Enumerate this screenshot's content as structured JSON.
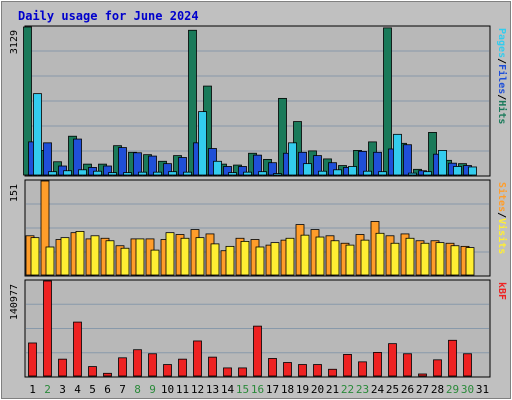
{
  "chart_data": [
    {
      "panel": "top",
      "type": "bar",
      "title": "Daily usage for June 2024",
      "y_max_label": "3129",
      "ylim": [
        0,
        3129
      ],
      "right_label_parts": [
        "Pages",
        "/",
        "Files",
        "/",
        "Hits"
      ],
      "categories": [
        "1",
        "2",
        "3",
        "4",
        "5",
        "6",
        "7",
        "8",
        "9",
        "10",
        "11",
        "12",
        "13",
        "14",
        "15",
        "16",
        "17",
        "18",
        "19",
        "20",
        "21",
        "22",
        "23",
        "24",
        "25",
        "26",
        "27",
        "28",
        "29",
        "30",
        "31"
      ],
      "series": [
        {
          "name": "Hits",
          "color": "#1a7a5a",
          "values": [
            3129,
            520,
            280,
            820,
            230,
            230,
            620,
            480,
            430,
            290,
            410,
            3060,
            1880,
            230,
            210,
            460,
            330,
            1620,
            1130,
            510,
            340,
            200,
            520,
            700,
            3110,
            670,
            120,
            900,
            310,
            240,
            0
          ]
        },
        {
          "name": "Files",
          "color": "#1f4fd8",
          "values": [
            700,
            680,
            190,
            760,
            160,
            190,
            580,
            470,
            400,
            240,
            370,
            680,
            560,
            180,
            180,
            420,
            260,
            460,
            480,
            410,
            260,
            160,
            500,
            480,
            550,
            640,
            90,
            440,
            250,
            200,
            0
          ]
        },
        {
          "name": "Pages",
          "color": "#33ccee",
          "values": [
            1720,
            70,
            90,
            110,
            80,
            50,
            50,
            60,
            60,
            70,
            60,
            1340,
            290,
            50,
            60,
            70,
            30,
            680,
            240,
            80,
            110,
            180,
            80,
            70,
            860,
            40,
            70,
            520,
            180,
            170,
            0
          ]
        }
      ]
    },
    {
      "panel": "middle",
      "type": "bar",
      "y_max_label": "151",
      "ylim": [
        0,
        151
      ],
      "right_label_parts": [
        "Sites",
        "/",
        "Visits"
      ],
      "categories": [
        "1",
        "2",
        "3",
        "4",
        "5",
        "6",
        "7",
        "8",
        "9",
        "10",
        "11",
        "12",
        "13",
        "14",
        "15",
        "16",
        "17",
        "18",
        "19",
        "20",
        "21",
        "22",
        "23",
        "24",
        "25",
        "26",
        "27",
        "28",
        "29",
        "30",
        "31"
      ],
      "series": [
        {
          "name": "Sites",
          "color": "#ff9d2a",
          "values": [
            63,
            151,
            57,
            68,
            58,
            59,
            47,
            58,
            58,
            57,
            65,
            73,
            66,
            39,
            59,
            57,
            48,
            56,
            81,
            73,
            63,
            51,
            65,
            86,
            63,
            66,
            55,
            55,
            51,
            46,
            0
          ]
        },
        {
          "name": "Visits",
          "color": "#ffee33",
          "values": [
            60,
            45,
            60,
            70,
            63,
            55,
            43,
            58,
            40,
            68,
            59,
            60,
            50,
            46,
            54,
            45,
            52,
            59,
            64,
            61,
            55,
            48,
            56,
            67,
            51,
            59,
            51,
            52,
            47,
            44,
            0
          ]
        }
      ]
    },
    {
      "panel": "bottom",
      "type": "bar",
      "y_max_label": "140977",
      "ylim": [
        0,
        140977
      ],
      "right_label_parts": [
        "kB",
        "F"
      ],
      "categories": [
        "1",
        "2",
        "3",
        "4",
        "5",
        "6",
        "7",
        "8",
        "9",
        "10",
        "11",
        "12",
        "13",
        "14",
        "15",
        "16",
        "17",
        "18",
        "19",
        "20",
        "21",
        "22",
        "23",
        "24",
        "25",
        "26",
        "27",
        "28",
        "29",
        "30",
        "31"
      ],
      "series": [
        {
          "name": "kB F",
          "color": "#ee2222",
          "values": [
            49000,
            140977,
            25000,
            80000,
            14000,
            4000,
            27000,
            39000,
            33000,
            17000,
            25000,
            52000,
            28000,
            12000,
            12000,
            74000,
            26000,
            20000,
            17000,
            17000,
            10000,
            32000,
            21000,
            35000,
            48000,
            33000,
            3000,
            24000,
            53000,
            33000,
            0
          ]
        }
      ]
    }
  ],
  "x_axis": {
    "labels": [
      "1",
      "2",
      "3",
      "4",
      "5",
      "6",
      "7",
      "8",
      "9",
      "10",
      "11",
      "12",
      "13",
      "14",
      "15",
      "16",
      "17",
      "18",
      "19",
      "20",
      "21",
      "22",
      "23",
      "24",
      "25",
      "26",
      "27",
      "28",
      "29",
      "30",
      "31"
    ],
    "weekend_days": [
      2,
      8,
      9,
      15,
      16,
      22,
      23,
      29,
      30
    ],
    "weekend_color": "#2a8a3a",
    "weekday_color": "#000000"
  },
  "colors": {
    "background": "#c0c0c0",
    "panel_bg": "#b8b8b8",
    "title": "#0000cc",
    "grid": "#8899aa"
  }
}
